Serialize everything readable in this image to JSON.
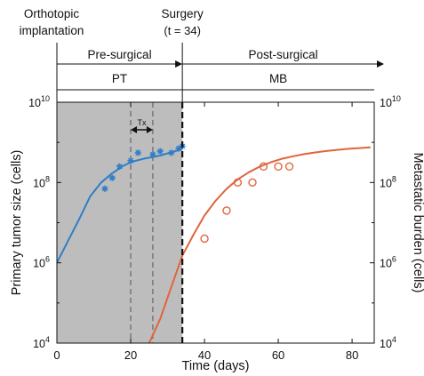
{
  "chart_data": {
    "type": "line",
    "top_labels": {
      "orthotopic": [
        "Orthotopic",
        "implantation"
      ],
      "surgery": [
        "Surgery",
        "(t = 34)"
      ]
    },
    "phase_labels": {
      "pre": "Pre-surgical",
      "post": "Post-surgical"
    },
    "region_labels": {
      "pt": "PT",
      "mb": "MB"
    },
    "treatment_label": "Tx",
    "xlabel": "Time (days)",
    "ylabel_left": "Primary tumor size (cells)",
    "ylabel_right": "Metastatic burden (cells)",
    "x_ticks": [
      "0",
      "20",
      "40",
      "60",
      "80"
    ],
    "y_tick_base": "10",
    "y_tick_exponents": [
      "4",
      "6",
      "8",
      "10"
    ],
    "xlim": [
      0,
      86
    ],
    "ylim_log10": [
      4,
      10
    ],
    "y_scale": "log",
    "surgery_time": 34,
    "treatment_window": [
      20,
      26
    ],
    "shaded_region": [
      0,
      34
    ],
    "colors": {
      "pt": "#2f7dc8",
      "mb": "#e0643c",
      "shade": "#bdbdbd"
    },
    "series": [
      {
        "x": [
          0,
          3,
          6,
          9,
          12,
          15,
          18,
          20,
          22,
          24,
          26,
          28,
          30,
          32,
          34
        ],
        "y": [
          1000000,
          3500000,
          12000000,
          45000000,
          100000000,
          170000000,
          260000000,
          320000000,
          360000000,
          400000000,
          430000000,
          470000000,
          530000000,
          600000000,
          700000000
        ],
        "markers": {
          "x": [
            13,
            15,
            17,
            20,
            22,
            26,
            28,
            31,
            33,
            34
          ],
          "y": [
            70000000,
            130000000,
            250000000,
            350000000,
            550000000,
            500000000,
            600000000,
            550000000,
            700000000,
            800000000
          ]
        }
      },
      {
        "x": [
          25,
          28,
          31,
          34,
          37,
          40,
          43,
          46,
          49,
          52,
          55,
          58,
          61,
          64,
          67,
          70,
          73,
          76,
          79,
          82,
          85
        ],
        "y": [
          10000,
          40000,
          250000,
          1500000,
          5000000,
          15000000,
          35000000,
          70000000,
          120000000,
          180000000,
          250000000,
          320000000,
          390000000,
          450000000,
          510000000,
          560000000,
          610000000,
          650000000,
          690000000,
          720000000,
          750000000
        ],
        "markers": {
          "x": [
            40,
            46,
            49,
            53,
            56,
            60,
            63
          ],
          "y": [
            4000000,
            20000000,
            100000000,
            100000000,
            250000000,
            250000000,
            250000000
          ]
        }
      }
    ]
  }
}
